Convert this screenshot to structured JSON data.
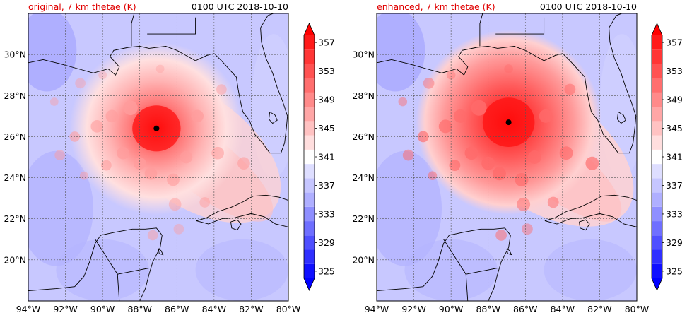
{
  "colors": {
    "title_left": "#e00000",
    "title_right": "#000000",
    "coast": "#000000",
    "grid": "#555555",
    "storm_center": "#000000"
  },
  "panels": [
    {
      "title_left": "original, 7 km thetae (K)",
      "title_right": "0100 UTC 2018-10-10"
    },
    {
      "title_left": "enhanced, 7 km thetae (K)",
      "title_right": "0100 UTC 2018-10-10"
    }
  ],
  "chart_data": [
    {
      "type": "heatmap",
      "title": "original, 7 km thetae (K)",
      "subtitle": "0100 UTC 2018-10-10",
      "xlabel": "",
      "ylabel": "",
      "xlim": [
        -94,
        -80
      ],
      "ylim": [
        18,
        32
      ],
      "grid": true,
      "x_ticks": [
        {
          "value": -94,
          "label": "94°W"
        },
        {
          "value": -92,
          "label": "92°W"
        },
        {
          "value": -90,
          "label": "90°W"
        },
        {
          "value": -88,
          "label": "88°W"
        },
        {
          "value": -86,
          "label": "86°W"
        },
        {
          "value": -84,
          "label": "84°W"
        },
        {
          "value": -82,
          "label": "82°W"
        },
        {
          "value": -80,
          "label": "80°W"
        }
      ],
      "y_ticks": [
        {
          "value": 20,
          "label": "20°N"
        },
        {
          "value": 22,
          "label": "22°N"
        },
        {
          "value": 24,
          "label": "24°N"
        },
        {
          "value": 26,
          "label": "26°N"
        },
        {
          "value": 28,
          "label": "28°N"
        },
        {
          "value": 30,
          "label": "30°N"
        }
      ],
      "storm_center": {
        "lon": -87.1,
        "lat": 26.4
      },
      "intensity": 0.8,
      "colorbar": {
        "levels": [
          325,
          327,
          329,
          331,
          333,
          335,
          337,
          339,
          341,
          343,
          345,
          347,
          349,
          351,
          353,
          355,
          357,
          359
        ],
        "labels": [
          "325",
          "329",
          "333",
          "337",
          "341",
          "345",
          "349",
          "353",
          "357"
        ],
        "extend": "both"
      }
    },
    {
      "type": "heatmap",
      "title": "enhanced, 7 km thetae (K)",
      "subtitle": "0100 UTC 2018-10-10",
      "xlabel": "",
      "ylabel": "",
      "xlim": [
        -94,
        -80
      ],
      "ylim": [
        18,
        32
      ],
      "grid": true,
      "x_ticks": [
        {
          "value": -94,
          "label": "94°W"
        },
        {
          "value": -92,
          "label": "92°W"
        },
        {
          "value": -90,
          "label": "90°W"
        },
        {
          "value": -88,
          "label": "88°W"
        },
        {
          "value": -86,
          "label": "86°W"
        },
        {
          "value": -84,
          "label": "84°W"
        },
        {
          "value": -82,
          "label": "82°W"
        },
        {
          "value": -80,
          "label": "80°W"
        }
      ],
      "y_ticks": [
        {
          "value": 20,
          "label": "20°N"
        },
        {
          "value": 22,
          "label": "22°N"
        },
        {
          "value": 24,
          "label": "24°N"
        },
        {
          "value": 26,
          "label": "26°N"
        },
        {
          "value": 28,
          "label": "28°N"
        },
        {
          "value": 30,
          "label": "30°N"
        }
      ],
      "storm_center": {
        "lon": -86.9,
        "lat": 26.7
      },
      "intensity": 1.0,
      "colorbar": {
        "levels": [
          325,
          327,
          329,
          331,
          333,
          335,
          337,
          339,
          341,
          343,
          345,
          347,
          349,
          351,
          353,
          355,
          357,
          359
        ],
        "labels": [
          "325",
          "329",
          "333",
          "337",
          "341",
          "345",
          "349",
          "353",
          "357"
        ],
        "extend": "both"
      }
    }
  ]
}
